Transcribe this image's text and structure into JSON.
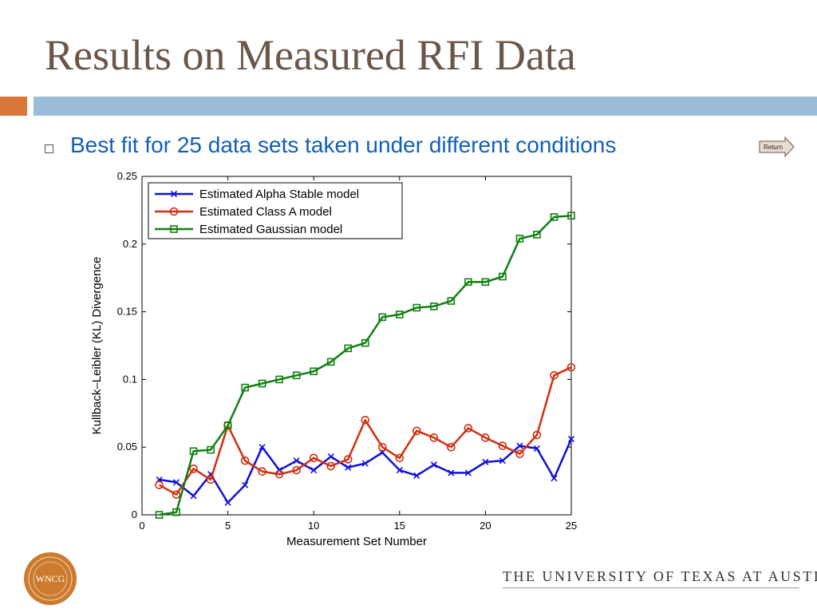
{
  "slide": {
    "title": "Results on Measured RFI Data",
    "bullet": "Best fit for 25 data sets taken under different conditions",
    "return_label": "Return",
    "footer_text": "THE UNIVERSITY OF TEXAS AT AUSTIN",
    "logo_text": "WNCG"
  },
  "colors": {
    "title": "#6b5648",
    "accent_orange": "#d9773a",
    "header_blue": "#9bbcd8",
    "bullet_text": "#1060b8",
    "logo_orange": "#cc7a2e"
  },
  "icons": {
    "bullet": "square-bullet-icon",
    "return": "arrow-right-icon"
  },
  "chart_data": {
    "type": "line",
    "title": "",
    "xlabel": "Measurement Set Number",
    "ylabel": "Kullback–Leibler (KL) Divergence",
    "xlim": [
      0,
      25
    ],
    "ylim": [
      0,
      0.25
    ],
    "x_ticks": [
      0,
      5,
      10,
      15,
      20,
      25
    ],
    "y_ticks": [
      0,
      0.05,
      0.1,
      0.15,
      0.2,
      0.25
    ],
    "x_tick_labels": [
      "0",
      "5",
      "10",
      "15",
      "20",
      "25"
    ],
    "y_tick_labels": [
      "0",
      "0.05",
      "0.1",
      "0.15",
      "0.2",
      "0.25"
    ],
    "grid": false,
    "legend_position": "top-left",
    "x": [
      1,
      2,
      3,
      4,
      5,
      6,
      7,
      8,
      9,
      10,
      11,
      12,
      13,
      14,
      15,
      16,
      17,
      18,
      19,
      20,
      21,
      22,
      23,
      24,
      25
    ],
    "series": [
      {
        "name": "Estimated Alpha Stable model",
        "color": "#1010dd",
        "marker": "x",
        "values": [
          0.026,
          0.024,
          0.014,
          0.03,
          0.009,
          0.022,
          0.05,
          0.033,
          0.04,
          0.033,
          0.043,
          0.035,
          0.038,
          0.046,
          0.033,
          0.029,
          0.037,
          0.031,
          0.031,
          0.039,
          0.04,
          0.051,
          0.049,
          0.027,
          0.056
        ]
      },
      {
        "name": "Estimated Class A model",
        "color": "#d03010",
        "marker": "circle",
        "values": [
          0.022,
          0.015,
          0.034,
          0.026,
          0.066,
          0.04,
          0.032,
          0.03,
          0.033,
          0.042,
          0.036,
          0.041,
          0.07,
          0.05,
          0.042,
          0.062,
          0.057,
          0.05,
          0.064,
          0.057,
          0.051,
          0.045,
          0.059,
          0.103,
          0.109
        ]
      },
      {
        "name": "Estimated Gaussian model",
        "color": "#108010",
        "marker": "square",
        "values": [
          0.0,
          0.002,
          0.047,
          0.048,
          0.066,
          0.094,
          0.097,
          0.1,
          0.103,
          0.106,
          0.113,
          0.123,
          0.127,
          0.146,
          0.148,
          0.153,
          0.154,
          0.158,
          0.172,
          0.172,
          0.176,
          0.204,
          0.207,
          0.22,
          0.221
        ]
      }
    ]
  }
}
